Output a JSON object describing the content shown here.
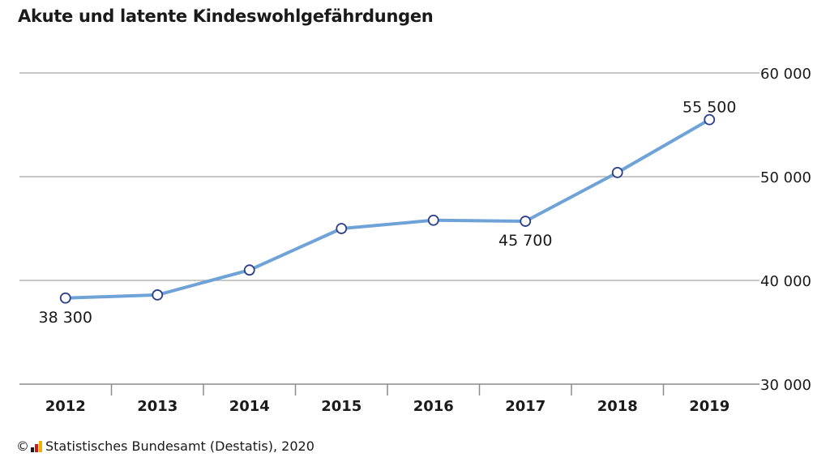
{
  "chart_data": {
    "type": "line",
    "title": "Akute und latente Kindeswohlgefährdungen",
    "categories": [
      "2012",
      "2013",
      "2014",
      "2015",
      "2016",
      "2017",
      "2018",
      "2019"
    ],
    "series": [
      {
        "values": [
          38300,
          38600,
          41000,
          45000,
          45800,
          45700,
          50400,
          55500
        ]
      }
    ],
    "data_labels": [
      {
        "index": 0,
        "text": "38 300"
      },
      {
        "index": 5,
        "text": "45 700"
      },
      {
        "index": 7,
        "text": "55 500"
      }
    ],
    "ylim": [
      30000,
      60000
    ],
    "y_ticks": [
      {
        "value": 30000,
        "label": "30 000"
      },
      {
        "value": 40000,
        "label": "40 000"
      },
      {
        "value": 50000,
        "label": "50 000"
      },
      {
        "value": 60000,
        "label": "60 000"
      }
    ],
    "y_axis_position": "right",
    "grid": true,
    "colors": {
      "line": "#6fa3d8",
      "marker": "#2b3f8a",
      "grid": "#b5b5b5",
      "axis": "#8c8c8c"
    }
  },
  "footer": {
    "copyright": "©",
    "source": "Statistisches Bundesamt (Destatis), 2020"
  }
}
